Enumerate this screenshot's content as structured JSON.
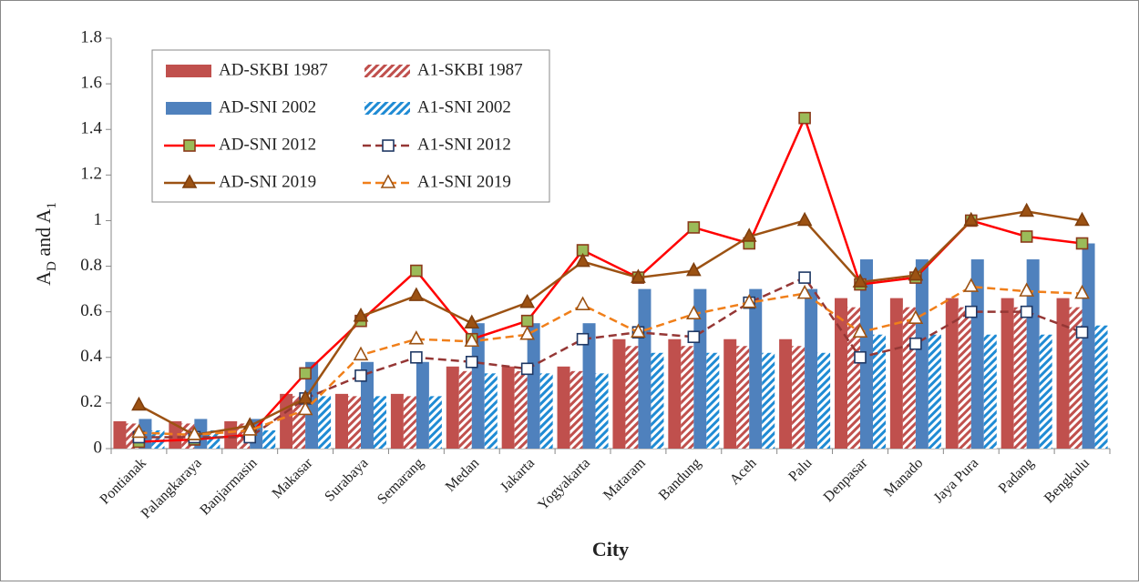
{
  "chart_data": {
    "type": "combo",
    "ylabel": [
      "A",
      "D",
      " and A",
      "1"
    ],
    "xlabel": "City",
    "categories": [
      "Pontianak",
      "Palangkaraya",
      "Banjarmasin",
      "Makasar",
      "Surabaya",
      "Semarang",
      "Medan",
      "Jakarta",
      "Yogyakarta",
      "Mataram",
      "Bandung",
      "Aceh",
      "Palu",
      "Denpasar",
      "Manado",
      "Jaya Pura",
      "Padang",
      "Bengkulu"
    ],
    "ylim": [
      0,
      1.8
    ],
    "yticks": [
      0,
      0.2,
      0.4,
      0.6,
      0.8,
      1,
      1.2,
      1.4,
      1.6,
      1.8
    ],
    "series": [
      {
        "name": "AD-SKBI 1987",
        "style": "bar",
        "hatch": false,
        "color": "#c0504d",
        "values": [
          0.12,
          0.12,
          0.12,
          0.24,
          0.24,
          0.24,
          0.36,
          0.36,
          0.36,
          0.48,
          0.48,
          0.48,
          0.48,
          0.66,
          0.66,
          0.66,
          0.66,
          0.66
        ]
      },
      {
        "name": "A1-SKBI 1987",
        "style": "bar",
        "hatch": true,
        "color": "#c0504d",
        "values": [
          0.11,
          0.11,
          0.11,
          0.23,
          0.23,
          0.23,
          0.34,
          0.34,
          0.34,
          0.45,
          0.45,
          0.45,
          0.45,
          0.62,
          0.62,
          0.62,
          0.62,
          0.62
        ]
      },
      {
        "name": "AD-SNI 2002",
        "style": "bar",
        "hatch": false,
        "color": "#4f81bd",
        "values": [
          0.13,
          0.13,
          0.13,
          0.38,
          0.38,
          0.38,
          0.55,
          0.55,
          0.55,
          0.7,
          0.7,
          0.7,
          0.7,
          0.83,
          0.83,
          0.83,
          0.83,
          0.9
        ]
      },
      {
        "name": "A1-SNI 2002",
        "style": "bar",
        "hatch": true,
        "color": "#1f8bd4",
        "values": [
          0.08,
          0.08,
          0.08,
          0.23,
          0.23,
          0.23,
          0.33,
          0.33,
          0.33,
          0.42,
          0.42,
          0.42,
          0.42,
          0.5,
          0.5,
          0.5,
          0.5,
          0.54
        ]
      },
      {
        "name": "AD-SNI 2012",
        "style": "line",
        "dash": false,
        "marker": "square",
        "color": "#ff0000",
        "marker_fill": "#9bbb59",
        "marker_edge": "#8b3a1a",
        "values": [
          0.03,
          0.04,
          0.06,
          0.33,
          0.56,
          0.78,
          0.48,
          0.56,
          0.87,
          0.75,
          0.97,
          0.9,
          1.45,
          0.72,
          0.75,
          1.0,
          0.93,
          0.9
        ]
      },
      {
        "name": "A1-SNI 2012",
        "style": "line",
        "dash": true,
        "marker": "square",
        "color": "#953735",
        "marker_fill": "none",
        "marker_edge": "#1f3864",
        "values": [
          0.05,
          0.05,
          0.05,
          0.22,
          0.32,
          0.4,
          0.38,
          0.35,
          0.48,
          0.51,
          0.49,
          0.64,
          0.75,
          0.4,
          0.46,
          0.6,
          0.6,
          0.51
        ]
      },
      {
        "name": "AD-SNI 2019",
        "style": "line",
        "dash": false,
        "marker": "triangle",
        "color": "#9c5213",
        "marker_fill": "#9c5213",
        "marker_edge": "#7f3f0e",
        "values": [
          0.19,
          0.06,
          0.1,
          0.22,
          0.58,
          0.67,
          0.55,
          0.64,
          0.82,
          0.75,
          0.78,
          0.93,
          1.0,
          0.73,
          0.76,
          1.0,
          1.04,
          1.0
        ]
      },
      {
        "name": "A1-SNI 2019",
        "style": "line",
        "dash": true,
        "marker": "triangle",
        "color": "#f07f1a",
        "marker_fill": "none",
        "marker_edge": "#9c5213",
        "values": [
          0.07,
          0.06,
          0.08,
          0.17,
          0.41,
          0.48,
          0.47,
          0.5,
          0.63,
          0.51,
          0.59,
          0.64,
          0.68,
          0.51,
          0.57,
          0.71,
          0.69,
          0.68
        ]
      }
    ]
  }
}
